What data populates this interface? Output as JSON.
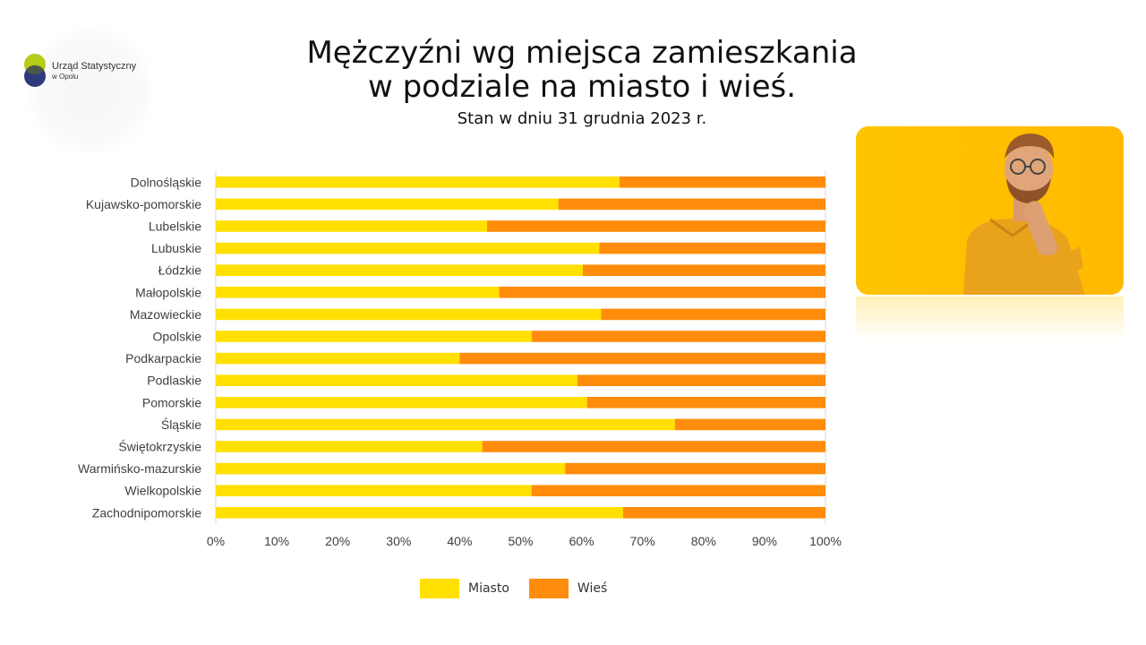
{
  "logo": {
    "line1": "Urząd Statystyczny",
    "line2": "w Opolu"
  },
  "header": {
    "title_line1": "Mężczyźni wg miejsca zamieszkania",
    "title_line2": "w podziale na miasto i wieś.",
    "subtitle": "Stan w dniu 31 grudnia 2023 r."
  },
  "colors": {
    "miasto": "#ffe000",
    "wies": "#ff8c0a",
    "grid": "#d9d9d9"
  },
  "chart_data": {
    "type": "bar",
    "orientation": "horizontal",
    "stacked": "percent",
    "categories": [
      "Dolnośląskie",
      "Kujawsko-pomorskie",
      "Lubelskie",
      "Lubuskie",
      "Łódzkie",
      "Małopolskie",
      "Mazowieckie",
      "Opolskie",
      "Podkarpackie",
      "Podlaskie",
      "Pomorskie",
      "Śląskie",
      "Świętokrzyskie",
      "Warmińsko-mazurskie",
      "Wielkopolskie",
      "Zachodnipomorskie"
    ],
    "series": [
      {
        "name": "Miasto",
        "values": [
          66.2,
          56.2,
          44.5,
          62.9,
          60.2,
          46.5,
          63.2,
          51.8,
          40.0,
          59.3,
          60.9,
          75.3,
          43.7,
          57.3,
          51.8,
          66.8
        ]
      },
      {
        "name": "Wieś",
        "values": [
          33.8,
          43.8,
          55.5,
          37.1,
          39.8,
          53.5,
          36.8,
          48.2,
          60.0,
          40.7,
          39.1,
          24.7,
          56.3,
          42.7,
          48.2,
          33.2
        ]
      }
    ],
    "xticks": [
      "0%",
      "10%",
      "20%",
      "30%",
      "40%",
      "50%",
      "60%",
      "70%",
      "80%",
      "90%",
      "100%"
    ],
    "xlim": [
      0,
      100
    ],
    "legend_position": "bottom"
  }
}
